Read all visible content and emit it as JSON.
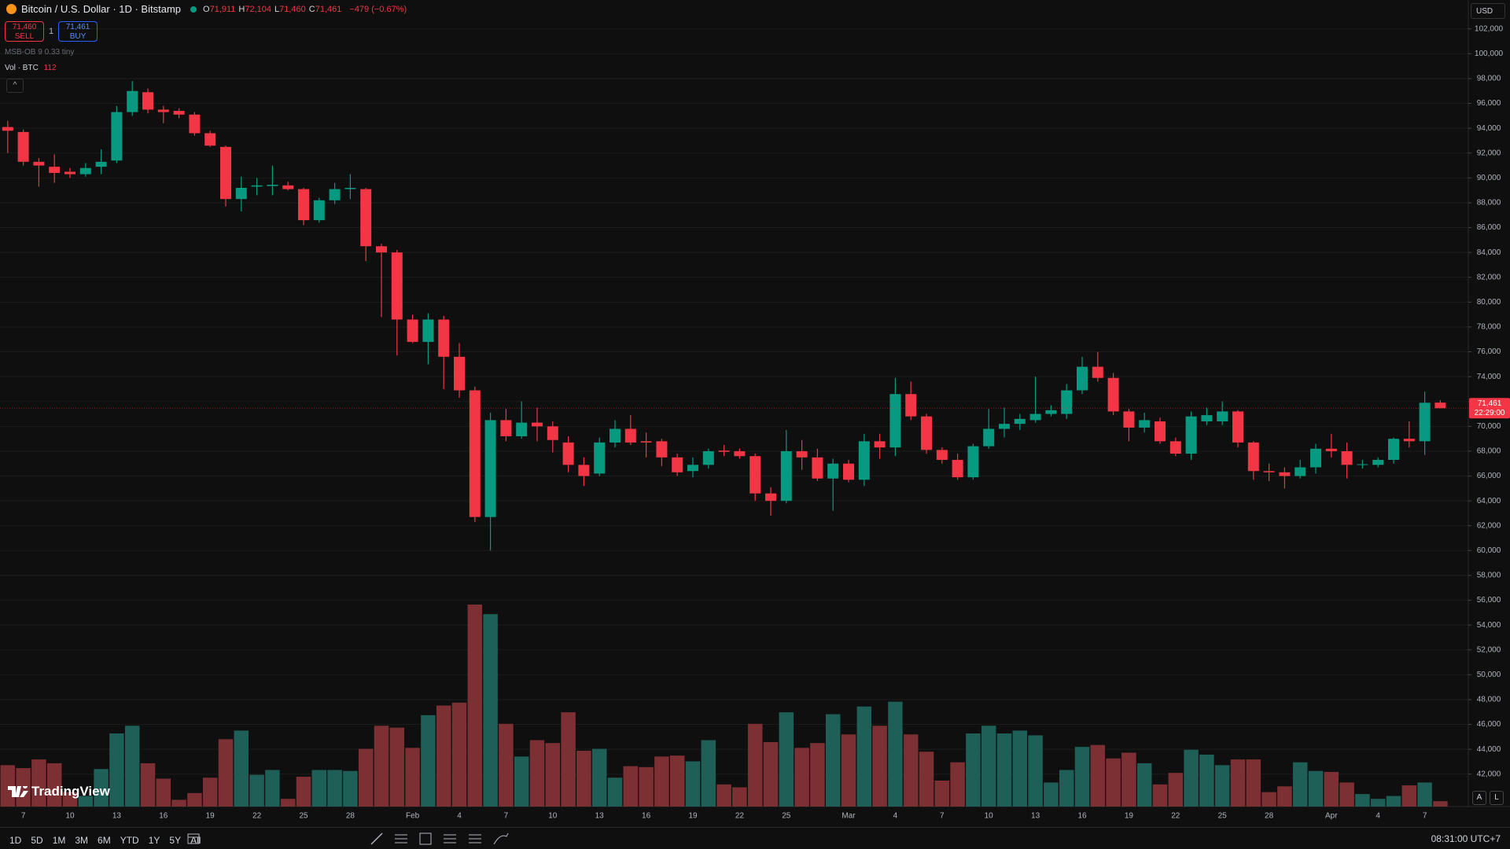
{
  "header": {
    "symbol": "Bitcoin / U.S. Dollar · 1D · Bitstamp",
    "ohlc": [
      {
        "key": "O",
        "value": "71,911"
      },
      {
        "key": "H",
        "value": "72,104"
      },
      {
        "key": "L",
        "value": "71,460"
      },
      {
        "key": "C",
        "value": "71,461"
      }
    ],
    "change": "−479 (−0.67%)"
  },
  "trade": {
    "sell_price": "71,460",
    "sell": "SELL",
    "quantity": "1",
    "buy_price": "71,461",
    "buy": "BUY"
  },
  "indicators": {
    "msb": "MSB-OB 9 0.33 tiny",
    "volume_label": "Vol · BTC",
    "volume_value": "112"
  },
  "currency": "USD",
  "price_tag": {
    "price": "71,461",
    "countdown": "22:29:00"
  },
  "brand": "TradingView",
  "scale_buttons": [
    "A",
    "L"
  ],
  "toolbar": {
    "ranges": [
      "1D",
      "5D",
      "1M",
      "3M",
      "6M",
      "YTD",
      "1Y",
      "5Y",
      "All"
    ],
    "time": "08:31:00 UTC+7"
  },
  "chart_data": {
    "type": "candlestick",
    "categories": [
      null,
      "7",
      null,
      null,
      "10",
      null,
      null,
      "13",
      null,
      null,
      "16",
      null,
      null,
      "19",
      null,
      null,
      "22",
      null,
      null,
      "25",
      null,
      null,
      "28",
      null,
      null,
      null,
      "Feb",
      null,
      null,
      "4",
      null,
      null,
      "7",
      null,
      null,
      "10",
      null,
      null,
      "13",
      null,
      null,
      "16",
      null,
      null,
      "19",
      null,
      null,
      "22",
      null,
      null,
      "25",
      null,
      null,
      null,
      "Mar",
      null,
      null,
      "4",
      null,
      null,
      "7",
      null,
      null,
      "10",
      null,
      null,
      "13",
      null,
      null,
      "16",
      null,
      null,
      "19",
      null,
      null,
      "22",
      null,
      null,
      "25",
      null,
      null,
      "28",
      null,
      null,
      null,
      "Apr",
      null,
      null,
      "4",
      null,
      null,
      "7",
      null
    ],
    "open": [
      94100,
      93700,
      91300,
      90900,
      90500,
      90300,
      90900,
      91400,
      95300,
      96900,
      95500,
      95400,
      95100,
      93600,
      92500,
      88300,
      89300,
      89350,
      89400,
      89100,
      86600,
      88200,
      89100,
      89100,
      84500,
      84000,
      78600,
      76800,
      78600,
      75600,
      72900,
      62700,
      70500,
      69200,
      70300,
      70000,
      68700,
      66900,
      66200,
      68700,
      69800,
      68800,
      68800,
      67500,
      66400,
      66900,
      68050,
      68000,
      67600,
      64600,
      64000,
      68000,
      67500,
      65800,
      67000,
      65700,
      68800,
      68300,
      72600,
      70800,
      68100,
      67300,
      65900,
      68400,
      69800,
      70200,
      70500,
      71000,
      71000,
      72900,
      74800,
      73900,
      71200,
      69900,
      70400,
      68800,
      67800,
      70400,
      70400,
      71200,
      68700,
      66400,
      66300,
      66000,
      66700,
      68200,
      68000,
      66900,
      66900,
      67300,
      69000,
      68800,
      71911
    ],
    "high": [
      94600,
      93900,
      91600,
      91900,
      90800,
      91200,
      92300,
      95800,
      97800,
      97200,
      95800,
      95600,
      95300,
      93800,
      92600,
      90100,
      90000,
      91000,
      89700,
      89200,
      88400,
      89600,
      90300,
      89200,
      84700,
      84200,
      79000,
      79100,
      78900,
      76700,
      73200,
      71100,
      71400,
      72000,
      71500,
      70400,
      69200,
      67500,
      69100,
      70500,
      70900,
      69500,
      69000,
      67800,
      67500,
      68200,
      68500,
      68200,
      67800,
      65100,
      69700,
      68900,
      68200,
      67400,
      67300,
      69400,
      69400,
      73900,
      73600,
      71000,
      68300,
      67800,
      68600,
      71400,
      71500,
      71000,
      74000,
      71700,
      73400,
      75600,
      76000,
      74300,
      71400,
      71100,
      70700,
      69100,
      71200,
      71500,
      72000,
      71300,
      68800,
      67000,
      66700,
      67300,
      68600,
      69400,
      68700,
      67300,
      67500,
      69100,
      70400,
      72800,
      72104
    ],
    "low": [
      92000,
      91000,
      89300,
      89600,
      90000,
      90100,
      90300,
      91200,
      95000,
      95200,
      94400,
      94800,
      93400,
      92500,
      87700,
      87300,
      88600,
      88600,
      89000,
      86200,
      86400,
      87900,
      88300,
      83300,
      78800,
      75700,
      76700,
      75000,
      73000,
      72300,
      62300,
      60000,
      68800,
      69000,
      68800,
      67900,
      66300,
      65200,
      66000,
      68300,
      68500,
      67500,
      66800,
      66000,
      65900,
      66600,
      67600,
      67400,
      64000,
      62800,
      63800,
      66500,
      65600,
      63200,
      65500,
      65200,
      67400,
      67600,
      70500,
      67800,
      67000,
      65700,
      65700,
      68200,
      69100,
      69700,
      70300,
      70800,
      70600,
      72600,
      73600,
      70900,
      68800,
      69500,
      68600,
      67600,
      67300,
      70100,
      70100,
      68300,
      65700,
      65600,
      65000,
      65800,
      66200,
      67500,
      65800,
      66600,
      66700,
      67000,
      68300,
      67700,
      71460
    ],
    "close": [
      93800,
      91300,
      91000,
      90400,
      90300,
      90800,
      91300,
      95300,
      97000,
      95500,
      95300,
      95100,
      93600,
      92600,
      88300,
      89200,
      89400,
      89450,
      89100,
      86600,
      88200,
      89100,
      89200,
      84500,
      84000,
      78600,
      76800,
      78600,
      75600,
      72900,
      62700,
      70500,
      69200,
      70300,
      70000,
      68900,
      66900,
      66000,
      68700,
      69800,
      68700,
      68700,
      67500,
      66300,
      66900,
      68000,
      67950,
      67600,
      64600,
      64000,
      68000,
      67500,
      65800,
      67000,
      65700,
      68800,
      68300,
      72600,
      70800,
      68100,
      67300,
      65900,
      68400,
      69800,
      70200,
      70600,
      71000,
      71300,
      72900,
      74800,
      73900,
      71200,
      69900,
      70500,
      68800,
      67800,
      70800,
      70900,
      71200,
      68700,
      66400,
      66300,
      66000,
      66700,
      68200,
      68000,
      66900,
      66950,
      67300,
      69000,
      68800,
      71900,
      71461
    ],
    "volume": [
      860,
      800,
      980,
      900,
      300,
      220,
      780,
      1520,
      1680,
      900,
      580,
      140,
      280,
      600,
      1400,
      1580,
      660,
      760,
      160,
      620,
      760,
      760,
      740,
      1200,
      1680,
      1640,
      1220,
      1900,
      2100,
      2160,
      4200,
      4000,
      1720,
      1040,
      1380,
      1320,
      1960,
      1160,
      1200,
      600,
      840,
      820,
      1040,
      1060,
      940,
      1380,
      460,
      400,
      1720,
      1340,
      1960,
      1220,
      1320,
      1920,
      1500,
      2080,
      1680,
      2180,
      1500,
      1140,
      540,
      920,
      1520,
      1680,
      1520,
      1580,
      1480,
      500,
      760,
      1240,
      1280,
      1000,
      1120,
      900,
      460,
      700,
      1180,
      1080,
      860,
      980,
      980,
      300,
      420,
      920,
      740,
      720,
      500,
      260,
      160,
      220,
      440,
      500,
      112
    ],
    "up_color": "#089981",
    "down_color": "#f23645",
    "volume_up_color": "#1e5f58",
    "volume_down_color": "#7c3033",
    "ylim": [
      39390,
      104325
    ],
    "yticks": [
      {
        "value": 42000,
        "label": "42,000"
      },
      {
        "value": 44000,
        "label": "44,000"
      },
      {
        "value": 46000,
        "label": "46,000"
      },
      {
        "value": 48000,
        "label": "48,000"
      },
      {
        "value": 50000,
        "label": "50,000"
      },
      {
        "value": 52000,
        "label": "52,000"
      },
      {
        "value": 54000,
        "label": "54,000"
      },
      {
        "value": 56000,
        "label": "56,000"
      },
      {
        "value": 58000,
        "label": "58,000"
      },
      {
        "value": 60000,
        "label": "60,000"
      },
      {
        "value": 62000,
        "label": "62,000"
      },
      {
        "value": 64000,
        "label": "64,000"
      },
      {
        "value": 66000,
        "label": "66,000"
      },
      {
        "value": 68000,
        "label": "68,000"
      },
      {
        "value": 70000,
        "label": "70,000"
      },
      {
        "value": 72000,
        "label": "72,000"
      },
      {
        "value": 74000,
        "label": "74,000"
      },
      {
        "value": 76000,
        "label": "76,000"
      },
      {
        "value": 78000,
        "label": "78,000"
      },
      {
        "value": 80000,
        "label": "80,000"
      },
      {
        "value": 82000,
        "label": "82,000"
      },
      {
        "value": 84000,
        "label": "84,000"
      },
      {
        "value": 86000,
        "label": "86,000"
      },
      {
        "value": 88000,
        "label": "88,000"
      },
      {
        "value": 90000,
        "label": "90,000"
      },
      {
        "value": 92000,
        "label": "92,000"
      },
      {
        "value": 94000,
        "label": "94,000"
      },
      {
        "value": 96000,
        "label": "96,000"
      },
      {
        "value": 98000,
        "label": "98,000"
      },
      {
        "value": 100000,
        "label": "100,000"
      },
      {
        "value": 102000,
        "label": "102,000"
      }
    ],
    "grid": true
  }
}
